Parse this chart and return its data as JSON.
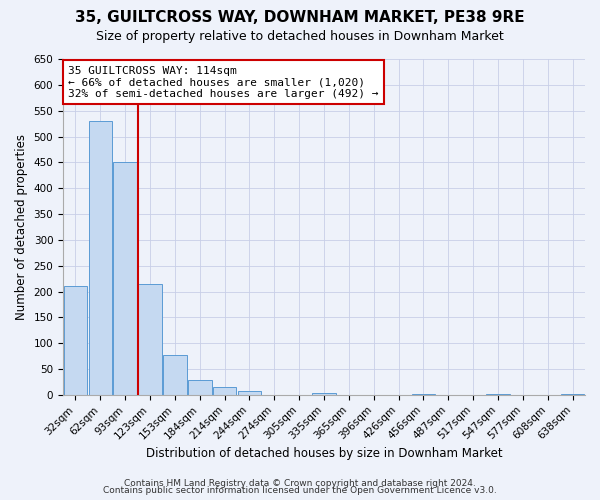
{
  "title": "35, GUILTCROSS WAY, DOWNHAM MARKET, PE38 9RE",
  "subtitle": "Size of property relative to detached houses in Downham Market",
  "xlabel": "Distribution of detached houses by size in Downham Market",
  "ylabel": "Number of detached properties",
  "bar_labels": [
    "32sqm",
    "62sqm",
    "93sqm",
    "123sqm",
    "153sqm",
    "184sqm",
    "214sqm",
    "244sqm",
    "274sqm",
    "305sqm",
    "335sqm",
    "365sqm",
    "396sqm",
    "426sqm",
    "456sqm",
    "487sqm",
    "517sqm",
    "547sqm",
    "577sqm",
    "608sqm",
    "638sqm"
  ],
  "bar_values": [
    210,
    530,
    450,
    215,
    78,
    28,
    15,
    8,
    0,
    0,
    3,
    0,
    0,
    0,
    1,
    0,
    0,
    1,
    0,
    0,
    1
  ],
  "bar_color": "#c5d9f1",
  "bar_edge_color": "#5b9bd5",
  "vline_color": "#cc0000",
  "vline_index": 2.5,
  "ylim": [
    0,
    650
  ],
  "yticks": [
    0,
    50,
    100,
    150,
    200,
    250,
    300,
    350,
    400,
    450,
    500,
    550,
    600,
    650
  ],
  "annotation_box_text": "35 GUILTCROSS WAY: 114sqm\n← 66% of detached houses are smaller (1,020)\n32% of semi-detached houses are larger (492) →",
  "annotation_box_color": "#cc0000",
  "annotation_box_fill": "#ffffff",
  "footer_line1": "Contains HM Land Registry data © Crown copyright and database right 2024.",
  "footer_line2": "Contains public sector information licensed under the Open Government Licence v3.0.",
  "background_color": "#eef2fa",
  "grid_color": "#c8cfe8",
  "title_fontsize": 11,
  "subtitle_fontsize": 9,
  "axis_label_fontsize": 8.5,
  "tick_fontsize": 7.5,
  "annotation_fontsize": 8,
  "footer_fontsize": 6.5
}
